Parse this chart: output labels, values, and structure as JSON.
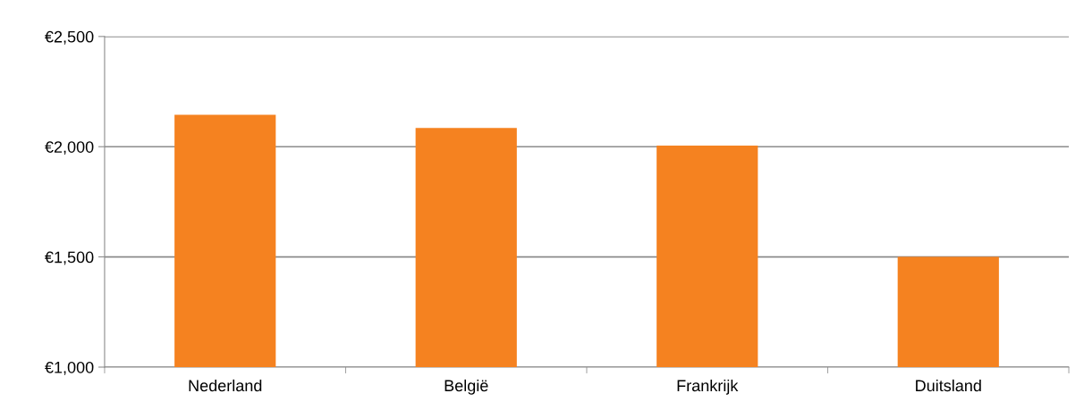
{
  "chart_data": {
    "type": "bar",
    "categories": [
      "Nederland",
      "België",
      "Frankrijk",
      "Duitsland"
    ],
    "values": [
      2145,
      2085,
      2005,
      1500
    ],
    "color": "#f58220",
    "ylim": [
      1000,
      2500
    ],
    "yticks": [
      {
        "value": 1000,
        "label": "€1,000"
      },
      {
        "value": 1500,
        "label": "€1,500"
      },
      {
        "value": 2000,
        "label": "€2,000"
      },
      {
        "value": 2500,
        "label": "€2,500"
      }
    ],
    "grid": "y"
  }
}
